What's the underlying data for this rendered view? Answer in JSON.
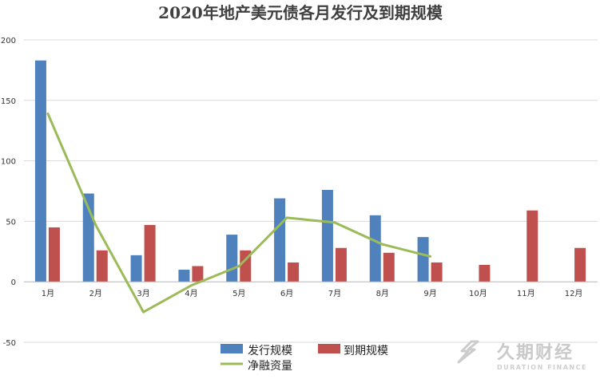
{
  "chart_data": {
    "type": "bar",
    "title": "2020年地产美元债各月发行及到期规模",
    "xlabel": "",
    "ylabel": "",
    "ylim": [
      -50,
      200
    ],
    "yticks": [
      "-50",
      "0",
      "50",
      "100",
      "150",
      "200"
    ],
    "grid": true,
    "legend_position": "bottom",
    "categories": [
      "1月",
      "2月",
      "3月",
      "4月",
      "5月",
      "6月",
      "7月",
      "8月",
      "9月",
      "10月",
      "11月",
      "12月"
    ],
    "series": [
      {
        "name": "发行规模",
        "kind": "bar",
        "color": "#4f81bd",
        "values": [
          183,
          73,
          22,
          10,
          39,
          69,
          76,
          55,
          37,
          null,
          null,
          null
        ]
      },
      {
        "name": "到期规模",
        "kind": "bar",
        "color": "#c0504d",
        "values": [
          45,
          26,
          47,
          13,
          26,
          16,
          28,
          24,
          16,
          14,
          59,
          28
        ]
      },
      {
        "name": "净融资量",
        "kind": "line",
        "color": "#9bbb59",
        "values": [
          139,
          47,
          -25,
          -3,
          13,
          53,
          49,
          31,
          21,
          null,
          null,
          null
        ]
      }
    ]
  },
  "watermark": {
    "text": "久期财经",
    "sub": "DURATION FINANCE",
    "icon": "duration-finance-logo-icon"
  }
}
